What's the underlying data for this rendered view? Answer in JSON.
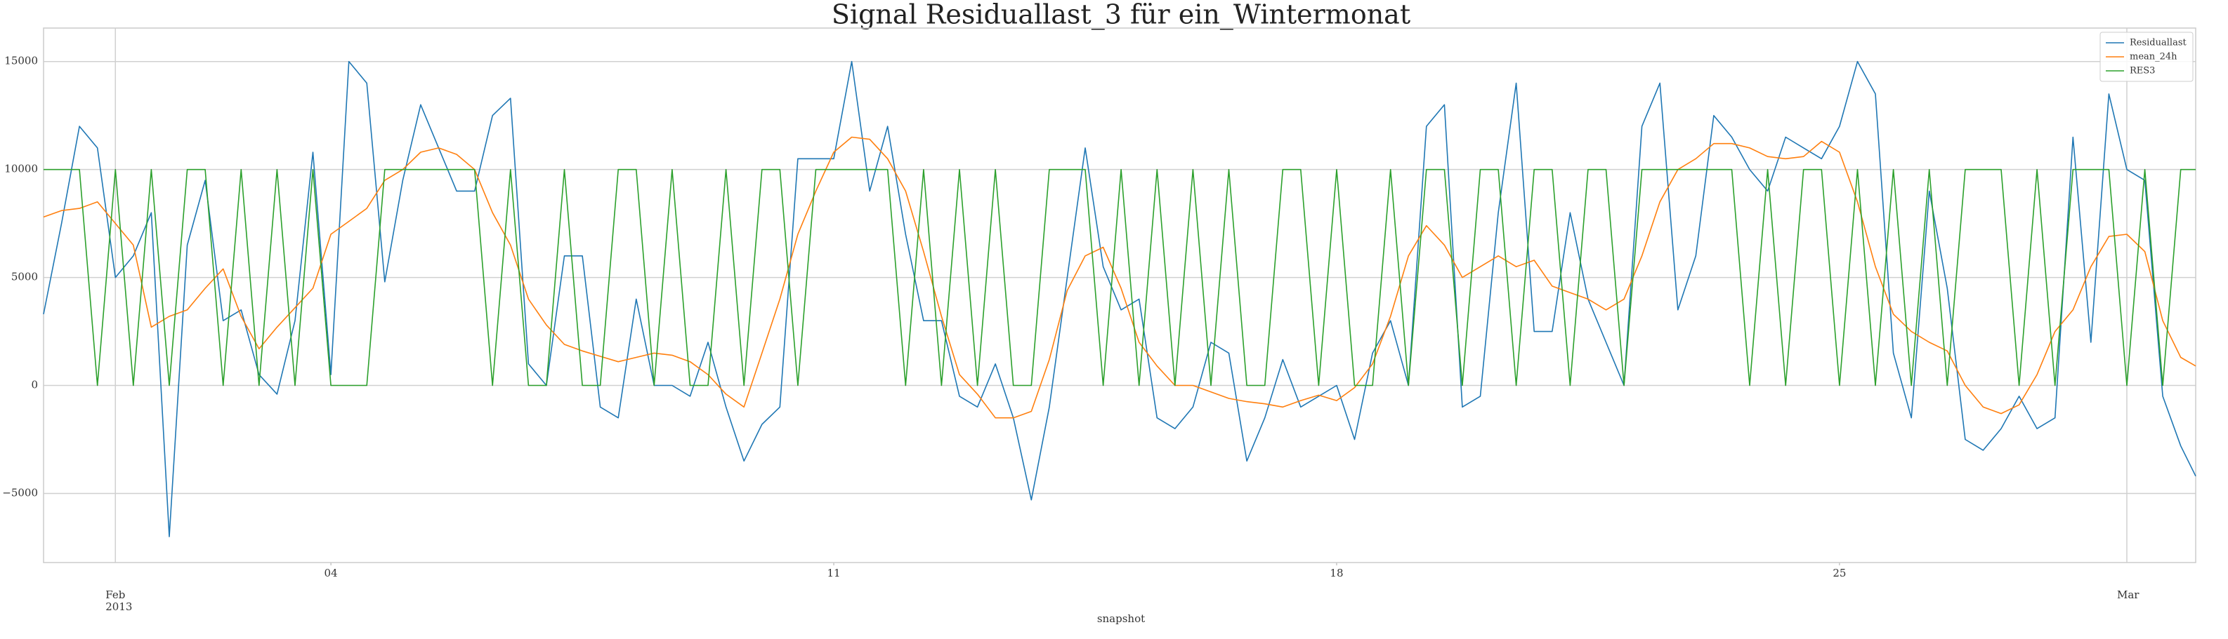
{
  "chart_data": {
    "type": "line",
    "title": "Signal Residuallast_3 für ein_Wintermonat",
    "xlabel": "snapshot",
    "x": [
      "2013-01-31 00:00",
      "2013-01-31 06:00",
      "2013-01-31 12:00",
      "2013-01-31 18:00",
      "2013-02-01 00:00",
      "2013-02-01 06:00",
      "2013-02-01 12:00",
      "2013-02-01 18:00",
      "2013-02-02 00:00",
      "2013-02-02 06:00",
      "2013-02-02 12:00",
      "2013-02-02 18:00",
      "2013-02-03 00:00",
      "2013-02-03 06:00",
      "2013-02-03 12:00",
      "2013-02-03 18:00",
      "2013-02-04 00:00",
      "2013-02-04 06:00",
      "2013-02-04 12:00",
      "2013-02-04 18:00",
      "2013-02-05 00:00",
      "2013-02-05 06:00",
      "2013-02-05 12:00",
      "2013-02-05 18:00",
      "2013-02-06 00:00",
      "2013-02-06 06:00",
      "2013-02-06 12:00",
      "2013-02-06 18:00",
      "2013-02-07 00:00",
      "2013-02-07 06:00",
      "2013-02-07 12:00",
      "2013-02-07 18:00",
      "2013-02-08 00:00",
      "2013-02-08 06:00",
      "2013-02-08 12:00",
      "2013-02-08 18:00",
      "2013-02-09 00:00",
      "2013-02-09 06:00",
      "2013-02-09 12:00",
      "2013-02-09 18:00",
      "2013-02-10 00:00",
      "2013-02-10 06:00",
      "2013-02-10 12:00",
      "2013-02-10 18:00",
      "2013-02-11 00:00",
      "2013-02-11 06:00",
      "2013-02-11 12:00",
      "2013-02-11 18:00",
      "2013-02-12 00:00",
      "2013-02-12 06:00",
      "2013-02-12 12:00",
      "2013-02-12 18:00",
      "2013-02-13 00:00",
      "2013-02-13 06:00",
      "2013-02-13 12:00",
      "2013-02-13 18:00",
      "2013-02-14 00:00",
      "2013-02-14 06:00",
      "2013-02-14 12:00",
      "2013-02-14 18:00",
      "2013-02-15 00:00",
      "2013-02-15 06:00",
      "2013-02-15 12:00",
      "2013-02-15 18:00",
      "2013-02-16 00:00",
      "2013-02-16 06:00",
      "2013-02-16 12:00",
      "2013-02-16 18:00",
      "2013-02-17 00:00",
      "2013-02-17 06:00",
      "2013-02-17 12:00",
      "2013-02-17 18:00",
      "2013-02-18 00:00",
      "2013-02-18 06:00",
      "2013-02-18 12:00",
      "2013-02-18 18:00",
      "2013-02-19 00:00",
      "2013-02-19 06:00",
      "2013-02-19 12:00",
      "2013-02-19 18:00",
      "2013-02-20 00:00",
      "2013-02-20 06:00",
      "2013-02-20 12:00",
      "2013-02-20 18:00",
      "2013-02-21 00:00",
      "2013-02-21 06:00",
      "2013-02-21 12:00",
      "2013-02-21 18:00",
      "2013-02-22 00:00",
      "2013-02-22 06:00",
      "2013-02-22 12:00",
      "2013-02-22 18:00",
      "2013-02-23 00:00",
      "2013-02-23 06:00",
      "2013-02-23 12:00",
      "2013-02-23 18:00",
      "2013-02-24 00:00",
      "2013-02-24 06:00",
      "2013-02-24 12:00",
      "2013-02-24 18:00",
      "2013-02-25 00:00",
      "2013-02-25 06:00",
      "2013-02-25 12:00",
      "2013-02-25 18:00",
      "2013-02-26 00:00",
      "2013-02-26 06:00",
      "2013-02-26 12:00",
      "2013-02-26 18:00",
      "2013-02-27 00:00",
      "2013-02-27 06:00",
      "2013-02-27 12:00",
      "2013-02-27 18:00",
      "2013-02-28 00:00",
      "2013-02-28 06:00",
      "2013-02-28 12:00",
      "2013-02-28 18:00",
      "2013-03-01 00:00",
      "2013-03-01 06:00",
      "2013-03-01 12:00",
      "2013-03-01 18:00",
      "2013-03-01 23:00"
    ],
    "series": [
      {
        "name": "Residuallast",
        "color": "#1f77b4",
        "values": [
          3300,
          7500,
          12000,
          11000,
          5000,
          6000,
          8000,
          -7000,
          6500,
          9500,
          3000,
          3500,
          500,
          -400,
          3000,
          10800,
          500,
          15000,
          14000,
          4800,
          9500,
          13000,
          11000,
          9000,
          9000,
          12500,
          13300,
          1000,
          0,
          6000,
          6000,
          -1000,
          -1500,
          4000,
          0,
          0,
          -500,
          2000,
          -1000,
          -3500,
          -1800,
          -1000,
          10500,
          10500,
          10500,
          15000,
          9000,
          12000,
          7000,
          3000,
          3000,
          -500,
          -1000,
          1000,
          -1500,
          -5300,
          -1000,
          5000,
          11000,
          5500,
          3500,
          4000,
          -1500,
          -2000,
          -1000,
          2000,
          1500,
          -3500,
          -1500,
          1200,
          -1000,
          -500,
          0,
          -2500,
          1500,
          3000,
          0,
          12000,
          13000,
          -1000,
          -500,
          8000,
          14000,
          2500,
          2500,
          8000,
          4000,
          2000,
          0,
          12000,
          14000,
          3500,
          6000,
          12500,
          11500,
          10000,
          9000,
          11500,
          11000,
          10500,
          12000,
          15000,
          13500,
          1500,
          -1500,
          9000,
          4500,
          -2500,
          -3000,
          -2000,
          -500,
          -2000,
          -1500,
          11500,
          2000,
          13500,
          10000,
          9500,
          -500,
          -2800,
          -4200
        ]
      },
      {
        "name": "mean_24h",
        "color": "#ff7f0e",
        "values": [
          7800,
          8100,
          8200,
          8500,
          7500,
          6500,
          2700,
          3200,
          3500,
          4500,
          5400,
          3200,
          1700,
          2700,
          3600,
          4500,
          7000,
          7600,
          8200,
          9500,
          10000,
          10800,
          11000,
          10700,
          10000,
          8000,
          6500,
          4000,
          2800,
          1900,
          1600,
          1350,
          1100,
          1300,
          1500,
          1400,
          1100,
          500,
          -400,
          -1000,
          1500,
          4000,
          7000,
          9000,
          10800,
          11500,
          11400,
          10500,
          9000,
          6200,
          3200,
          500,
          -400,
          -1500,
          -1500,
          -1200,
          1200,
          4400,
          6000,
          6400,
          4500,
          2000,
          900,
          0,
          0,
          -300,
          -600,
          -750,
          -850,
          -1000,
          -700,
          -450,
          -700,
          -100,
          1000,
          3200,
          6000,
          7400,
          6500,
          5000,
          5500,
          6000,
          5500,
          5800,
          4600,
          4300,
          4000,
          3500,
          4000,
          6000,
          8500,
          10000,
          10500,
          11200,
          11200,
          11000,
          10600,
          10500,
          10600,
          11300,
          10800,
          8500,
          5500,
          3300,
          2500,
          2000,
          1600,
          0,
          -1000,
          -1300,
          -900,
          500,
          2500,
          3500,
          5500,
          6900,
          7000,
          6200,
          3000,
          1300,
          900
        ]
      },
      {
        "name": "RES3",
        "color": "#2ca02c",
        "values": [
          10000,
          10000,
          10000,
          0,
          10000,
          0,
          10000,
          0,
          10000,
          10000,
          0,
          10000,
          0,
          10000,
          0,
          10000,
          0,
          0,
          0,
          10000,
          10000,
          10000,
          10000,
          10000,
          10000,
          0,
          10000,
          0,
          0,
          10000,
          0,
          0,
          10000,
          10000,
          0,
          10000,
          0,
          0,
          10000,
          0,
          10000,
          10000,
          0,
          10000,
          10000,
          10000,
          10000,
          10000,
          0,
          10000,
          0,
          10000,
          0,
          10000,
          0,
          0,
          10000,
          10000,
          10000,
          0,
          10000,
          0,
          10000,
          0,
          10000,
          0,
          10000,
          0,
          0,
          10000,
          10000,
          0,
          10000,
          0,
          0,
          10000,
          0,
          10000,
          10000,
          0,
          10000,
          10000,
          0,
          10000,
          10000,
          0,
          10000,
          10000,
          0,
          10000,
          10000,
          10000,
          10000,
          10000,
          10000,
          0,
          10000,
          0,
          10000,
          10000,
          0,
          10000,
          0,
          10000,
          0,
          10000,
          0,
          10000,
          10000,
          10000,
          0,
          10000,
          0,
          10000,
          10000,
          10000,
          0,
          10000,
          0,
          10000,
          10000
        ]
      }
    ],
    "xlim": [
      "2013-01-31 00:00",
      "2013-03-01 23:00"
    ],
    "xticks": [
      {
        "value": "2013-02-01 00:00",
        "label": "Feb\n2013"
      },
      {
        "value": "2013-03-01 00:00",
        "label": "Mar"
      }
    ],
    "xticks_minor": [
      {
        "value": "2013-02-04 00:00",
        "label": "04"
      },
      {
        "value": "2013-02-11 00:00",
        "label": "11"
      },
      {
        "value": "2013-02-18 00:00",
        "label": "18"
      },
      {
        "value": "2013-02-25 00:00",
        "label": "25"
      }
    ],
    "ylim": [
      -8200,
      16550
    ],
    "yticks": [
      {
        "value": -5000,
        "label": "−5000"
      },
      0,
      5000,
      10000,
      15000
    ],
    "grid": true,
    "legend": "upper right"
  }
}
